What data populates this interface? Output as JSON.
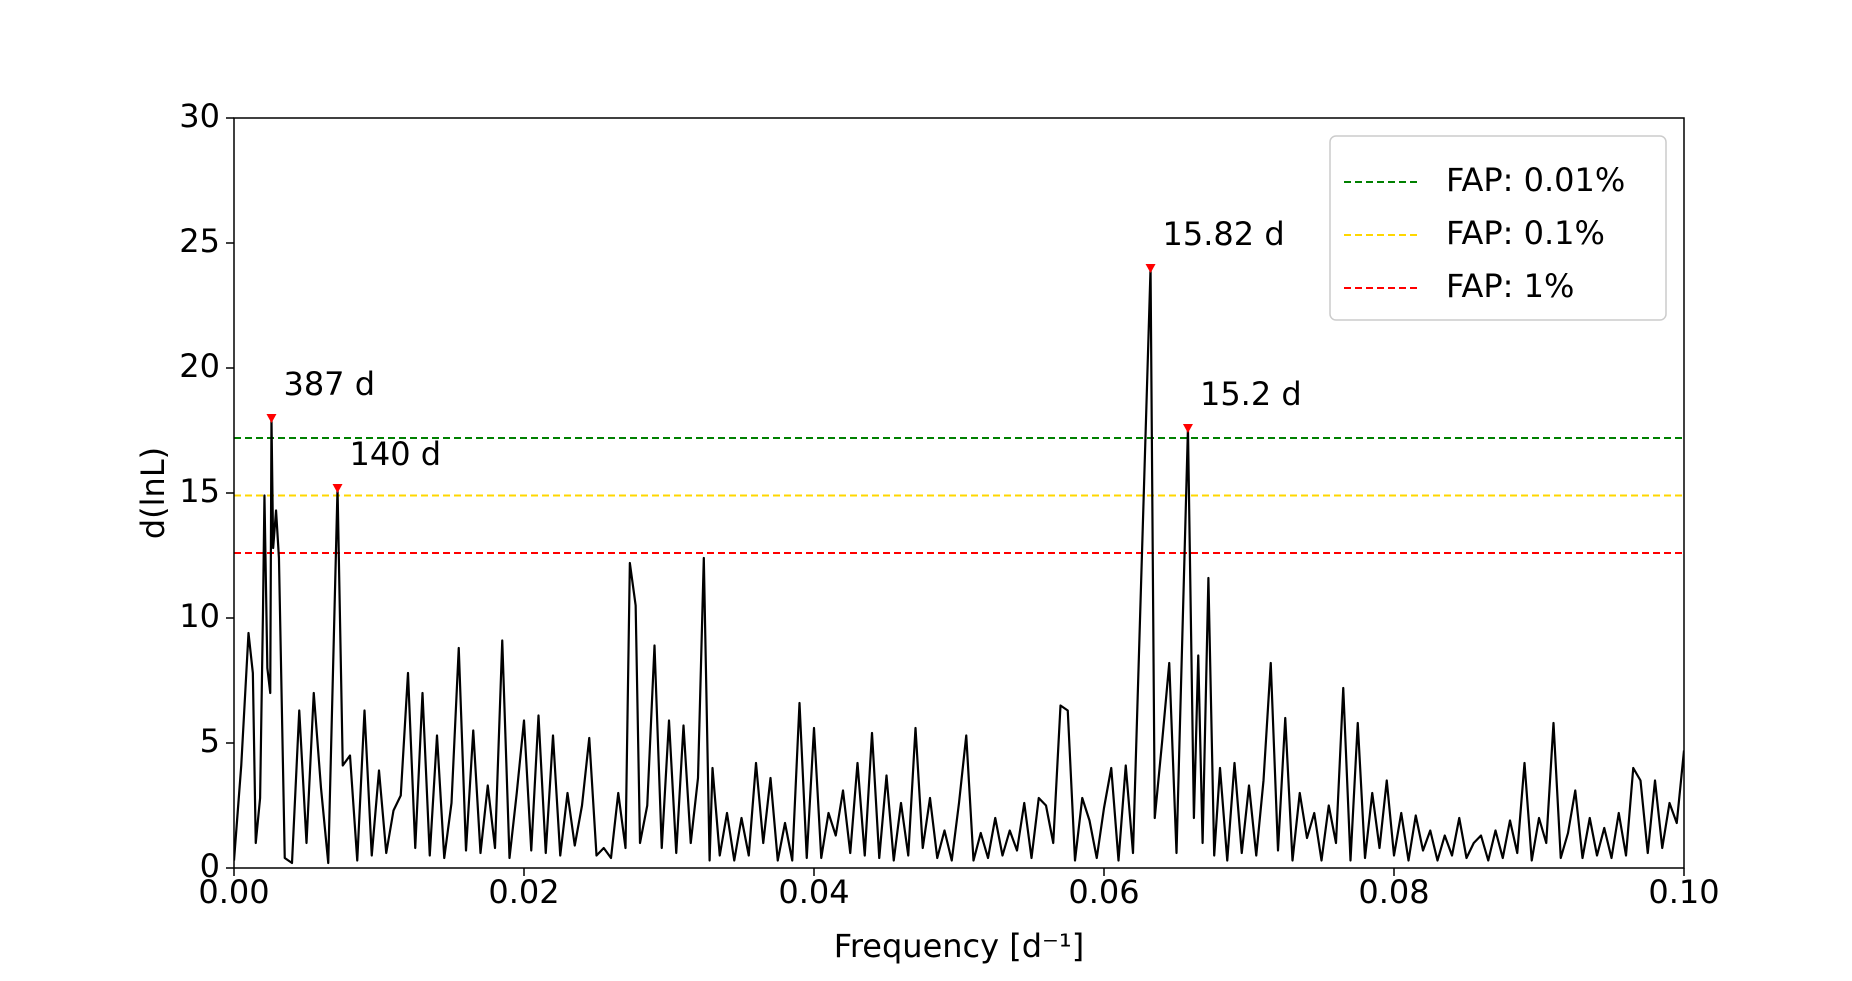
{
  "chart_data": {
    "type": "line",
    "xlabel": "Frequency [d⁻¹]",
    "ylabel": "d(lnL)",
    "xlim": [
      0,
      0.1
    ],
    "ylim": [
      0,
      30
    ],
    "xticks": [
      {
        "value": 0,
        "label": "0.00"
      },
      {
        "value": 0.02,
        "label": "0.02"
      },
      {
        "value": 0.04,
        "label": "0.04"
      },
      {
        "value": 0.06,
        "label": "0.06"
      },
      {
        "value": 0.08,
        "label": "0.08"
      },
      {
        "value": 0.1,
        "label": "0.10"
      }
    ],
    "yticks": [
      0,
      5,
      10,
      15,
      20,
      25,
      30
    ],
    "legend_loc": "upper right",
    "x": [
      0,
      0.0005,
      0.001,
      0.0013,
      0.0015,
      0.0018,
      0.002,
      0.0021,
      0.0023,
      0.0025,
      0.002584,
      0.0027,
      0.0029,
      0.0031,
      0.0035,
      0.004,
      0.0045,
      0.005,
      0.0055,
      0.006,
      0.0065,
      0.00714,
      0.0075,
      0.008,
      0.0085,
      0.009,
      0.0095,
      0.01,
      0.0105,
      0.011,
      0.0115,
      0.012,
      0.0125,
      0.013,
      0.0135,
      0.014,
      0.0145,
      0.015,
      0.0155,
      0.016,
      0.0165,
      0.017,
      0.0175,
      0.018,
      0.0185,
      0.019,
      0.0195,
      0.02,
      0.0205,
      0.021,
      0.0215,
      0.022,
      0.0225,
      0.023,
      0.0235,
      0.024,
      0.0245,
      0.025,
      0.0255,
      0.026,
      0.0265,
      0.027,
      0.0273,
      0.0277,
      0.028,
      0.0285,
      0.029,
      0.0295,
      0.03,
      0.0305,
      0.031,
      0.0315,
      0.032,
      0.0324,
      0.0328,
      0.033,
      0.0335,
      0.034,
      0.0345,
      0.035,
      0.0355,
      0.036,
      0.0365,
      0.037,
      0.0375,
      0.038,
      0.0385,
      0.039,
      0.0395,
      0.04,
      0.0405,
      0.041,
      0.0415,
      0.042,
      0.0425,
      0.043,
      0.0435,
      0.044,
      0.0445,
      0.045,
      0.0455,
      0.046,
      0.0465,
      0.047,
      0.0475,
      0.048,
      0.0485,
      0.049,
      0.0495,
      0.05,
      0.0505,
      0.051,
      0.0515,
      0.052,
      0.0525,
      0.053,
      0.0535,
      0.054,
      0.0545,
      0.055,
      0.0555,
      0.056,
      0.0565,
      0.057,
      0.0575,
      0.058,
      0.0585,
      0.059,
      0.0595,
      0.06,
      0.0605,
      0.061,
      0.0615,
      0.062,
      0.06321,
      0.0635,
      0.064,
      0.0645,
      0.065,
      0.06579,
      0.0662,
      0.0665,
      0.0668,
      0.0672,
      0.0676,
      0.068,
      0.0685,
      0.069,
      0.0695,
      0.07,
      0.0705,
      0.071,
      0.0715,
      0.072,
      0.0725,
      0.073,
      0.0735,
      0.074,
      0.0745,
      0.075,
      0.0755,
      0.076,
      0.0765,
      0.077,
      0.0775,
      0.078,
      0.0785,
      0.079,
      0.0795,
      0.08,
      0.0805,
      0.081,
      0.0815,
      0.082,
      0.0825,
      0.083,
      0.0835,
      0.084,
      0.0845,
      0.085,
      0.0855,
      0.086,
      0.0865,
      0.087,
      0.0875,
      0.088,
      0.0885,
      0.089,
      0.0895,
      0.09,
      0.0905,
      0.091,
      0.0915,
      0.092,
      0.0925,
      0.093,
      0.0935,
      0.094,
      0.0945,
      0.095,
      0.0955,
      0.096,
      0.0965,
      0.097,
      0.0975,
      0.098,
      0.0985,
      0.099,
      0.0995,
      0.1
    ],
    "series": [
      {
        "color": "#000000",
        "values": [
          0.3,
          4.1,
          9.4,
          7.8,
          1.0,
          2.8,
          10.3,
          14.9,
          8.0,
          7.0,
          18.0,
          12.8,
          14.3,
          12.4,
          0.4,
          0.2,
          6.3,
          1.0,
          7.0,
          3.2,
          0.2,
          15.2,
          4.1,
          4.5,
          0.3,
          6.3,
          0.5,
          3.9,
          0.6,
          2.3,
          2.9,
          7.8,
          0.8,
          7.0,
          0.5,
          5.3,
          0.4,
          2.6,
          8.8,
          0.7,
          5.5,
          0.6,
          3.3,
          0.8,
          9.1,
          0.4,
          3.0,
          5.9,
          0.7,
          6.1,
          0.6,
          5.3,
          0.5,
          3.0,
          0.9,
          2.5,
          5.2,
          0.5,
          0.8,
          0.4,
          3.0,
          0.8,
          12.2,
          10.5,
          1.0,
          2.5,
          8.9,
          0.8,
          5.9,
          0.6,
          5.7,
          1.0,
          3.6,
          12.4,
          0.3,
          4.0,
          0.5,
          2.2,
          0.3,
          2.0,
          0.5,
          4.2,
          1.0,
          3.6,
          0.3,
          1.8,
          0.3,
          6.6,
          0.4,
          5.6,
          0.4,
          2.2,
          1.3,
          3.1,
          0.6,
          4.2,
          0.5,
          5.4,
          0.4,
          3.7,
          0.3,
          2.6,
          0.5,
          5.6,
          0.8,
          2.8,
          0.4,
          1.5,
          0.3,
          2.6,
          5.3,
          0.3,
          1.4,
          0.4,
          2.0,
          0.5,
          1.5,
          0.7,
          2.6,
          0.4,
          2.8,
          2.5,
          1.0,
          6.5,
          6.3,
          0.3,
          2.8,
          1.9,
          0.4,
          2.4,
          4.0,
          0.3,
          4.1,
          0.6,
          24.0,
          2.0,
          5.0,
          8.2,
          0.6,
          17.6,
          2.0,
          8.5,
          1.0,
          11.6,
          0.5,
          4.0,
          0.3,
          4.2,
          0.6,
          3.3,
          0.5,
          3.5,
          8.2,
          0.7,
          6.0,
          0.3,
          3.0,
          1.2,
          2.2,
          0.3,
          2.5,
          1.0,
          7.2,
          0.3,
          5.8,
          0.4,
          3.0,
          0.8,
          3.5,
          0.5,
          2.2,
          0.3,
          2.1,
          0.7,
          1.5,
          0.3,
          1.3,
          0.5,
          2.0,
          0.4,
          1.0,
          1.3,
          0.3,
          1.5,
          0.4,
          1.9,
          0.6,
          4.2,
          0.3,
          2.0,
          1.0,
          5.8,
          0.4,
          1.4,
          3.1,
          0.4,
          2.0,
          0.5,
          1.6,
          0.4,
          2.2,
          0.5,
          4.0,
          3.5,
          0.6,
          3.5,
          0.8,
          2.6,
          1.8,
          4.7
        ]
      }
    ],
    "thresholds": [
      {
        "name": "FAP: 0.01%",
        "color": "#008000",
        "value": 17.2
      },
      {
        "name": "FAP: 0.1%",
        "color": "#ffd700",
        "value": 14.9
      },
      {
        "name": "FAP: 1%",
        "color": "#ff0000",
        "value": 12.6
      }
    ],
    "peaks": [
      {
        "x": 0.002584,
        "y": 18.0,
        "label": "387 d"
      },
      {
        "x": 0.00714,
        "y": 15.2,
        "label": "140 d"
      },
      {
        "x": 0.06321,
        "y": 24.0,
        "label": "15.82 d"
      },
      {
        "x": 0.06579,
        "y": 17.6,
        "label": "15.2 d"
      }
    ],
    "peak_color": "#ff0000"
  }
}
